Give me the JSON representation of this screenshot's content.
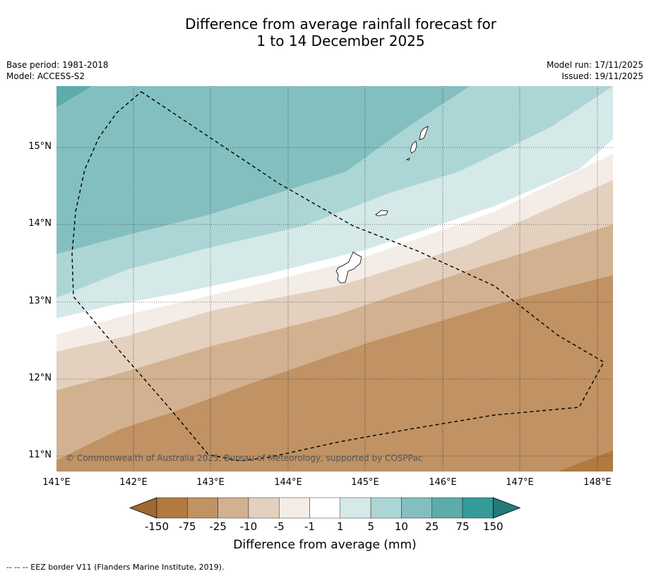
{
  "title_line1": "Difference from average rainfall forecast for",
  "title_line2": "1 to 14 December 2025",
  "base_period": "Base period: 1981-2018",
  "model": "Model: ACCESS-S2",
  "model_run": "Model run: 17/11/2025",
  "issued": "Issued: 19/11/2025",
  "lat_labels": [
    "15°N",
    "14°N",
    "13°N",
    "12°N",
    "11°N"
  ],
  "lon_labels": [
    "141°E",
    "142°E",
    "143°E",
    "144°E",
    "145°E",
    "146°E",
    "147°E",
    "148°E"
  ],
  "copyright": "© Commonwealth of Australia 2025, Bureau of Meteorology, supported by COSPPac",
  "colorbar": {
    "ticks": [
      "-150",
      "-75",
      "-25",
      "-10",
      "-5",
      "-1",
      "1",
      "5",
      "10",
      "25",
      "75",
      "150"
    ],
    "colors": [
      "#a0692f",
      "#b07a41",
      "#c09264",
      "#d2b190",
      "#e4d0be",
      "#f4ede7",
      "#ffffff",
      "#d5e9e8",
      "#acd6d5",
      "#84bfbf",
      "#5bacab",
      "#359b99",
      "#247a77"
    ],
    "title": "Difference from average (mm)"
  },
  "legend_footer": "--  --  -- EEZ border V11 (Flanders Marine Institute, 2019)."
}
